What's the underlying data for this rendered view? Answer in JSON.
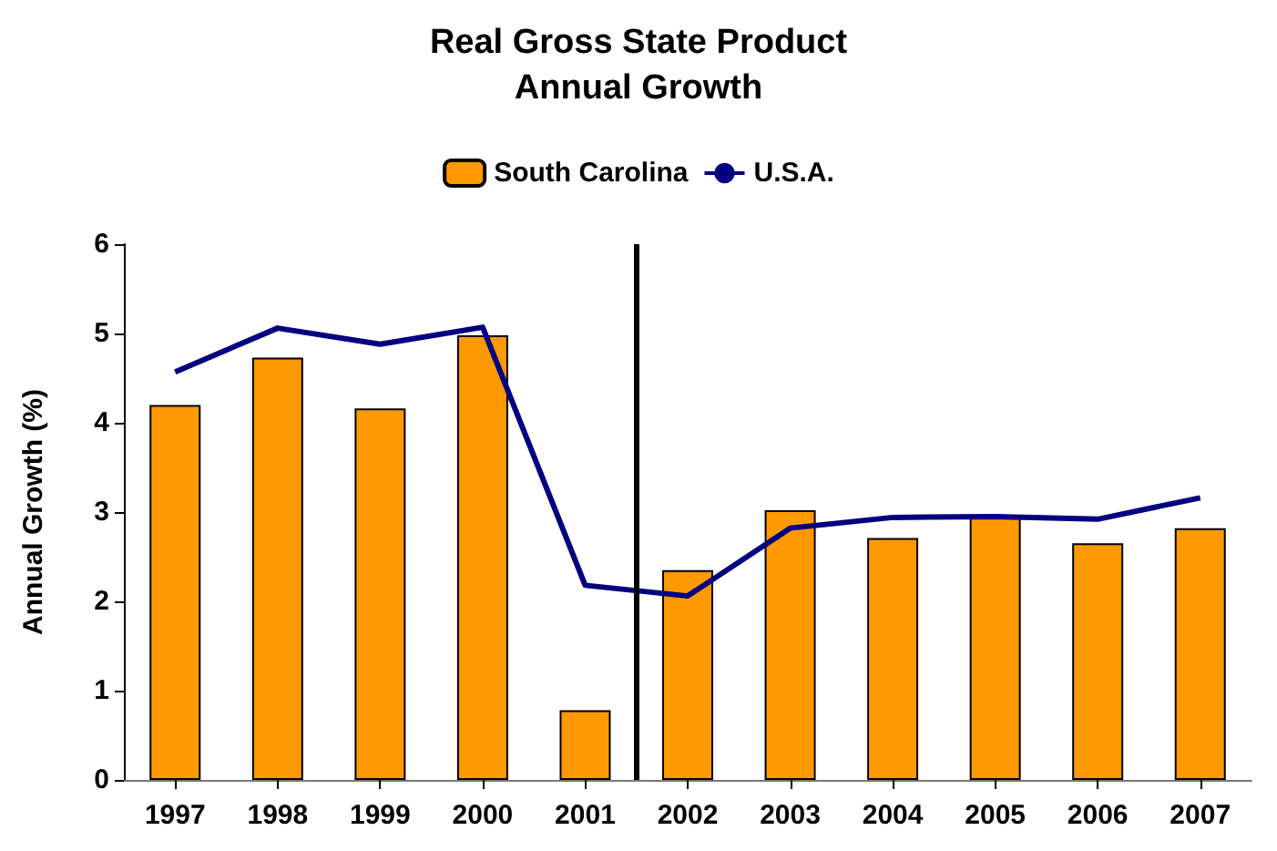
{
  "chart_data": {
    "type": "bar",
    "title": "Real Gross State Product\nAnnual Growth",
    "ylabel": "Annual Growth (%)",
    "x": [
      1997,
      1998,
      1999,
      2000,
      2001,
      2002,
      2003,
      2004,
      2005,
      2006,
      2007
    ],
    "xlim": [
      1996.5,
      2007.5
    ],
    "xticks": [
      1997,
      1998,
      1999,
      2000,
      2001,
      2002,
      2003,
      2004,
      2005,
      2006,
      2007
    ],
    "ylim": [
      0,
      6
    ],
    "yticks": [
      0,
      1,
      2,
      3,
      4,
      5,
      6
    ],
    "series": [
      {
        "name": "South Carolina",
        "color": "#ff9900",
        "values": [
          4.2,
          4.73,
          4.16,
          4.98,
          0.78,
          2.35,
          3.02,
          2.71,
          2.94,
          2.65,
          2.82
        ]
      },
      {
        "name": "U.S.A.",
        "type": "line",
        "color": "#000080",
        "marker": "none",
        "line_style": "solid",
        "values": [
          4.57,
          5.06,
          4.88,
          5.07,
          2.18,
          2.06,
          2.82,
          2.94,
          2.95,
          2.92,
          3.16
        ]
      }
    ],
    "ref_lines": [
      {
        "axis": "x",
        "value": 2001.5,
        "color": "#000000",
        "line_style": "solid"
      }
    ],
    "grid": false,
    "legend": "top"
  }
}
